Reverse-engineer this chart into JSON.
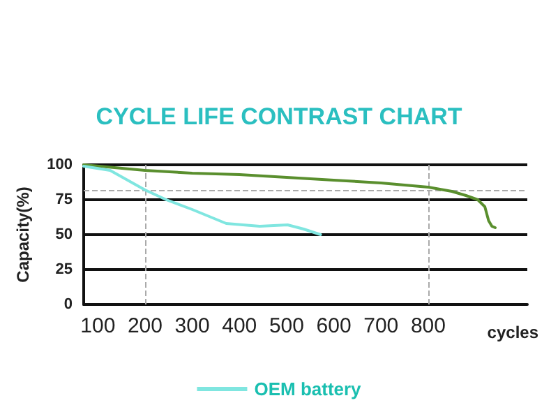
{
  "chart_data": {
    "type": "line",
    "title": "CYCLE LIFE CONTRAST CHART",
    "xlabel": "cycles",
    "ylabel": "Capacity(%)",
    "xlim": [
      70,
      1010
    ],
    "xticks": [
      100,
      200,
      300,
      400,
      500,
      600,
      700,
      800
    ],
    "ylim": [
      0,
      100
    ],
    "yticks": [
      0,
      25,
      50,
      75,
      100
    ],
    "grid": "y",
    "legend": "bottom",
    "marker": "none",
    "line_style": "solid",
    "ref_lines": [
      {
        "axis": "x",
        "value": 200,
        "line_style": "dashed",
        "color": "#aaaaaa"
      },
      {
        "axis": "x",
        "value": 800,
        "line_style": "dashed",
        "color": "#aaaaaa"
      },
      {
        "axis": "y",
        "value": 82,
        "line_style": "dashed",
        "color": "#aaaaaa"
      }
    ],
    "series": [
      {
        "color": "#5a8f2e",
        "x": [
          70,
          200,
          300,
          400,
          500,
          600,
          700,
          800,
          850,
          880,
          905,
          920,
          928,
          935,
          942
        ],
        "values": [
          100,
          96,
          94,
          93,
          91,
          89,
          87,
          84,
          81,
          78,
          75,
          70,
          60,
          56,
          55
        ]
      },
      {
        "name": "OEM battery",
        "color": "#80e6e0",
        "x": [
          70,
          126,
          200,
          245,
          300,
          372,
          443,
          502,
          536,
          572
        ],
        "values": [
          99,
          96,
          82,
          75,
          68,
          58,
          56,
          57,
          54,
          50
        ]
      }
    ]
  }
}
